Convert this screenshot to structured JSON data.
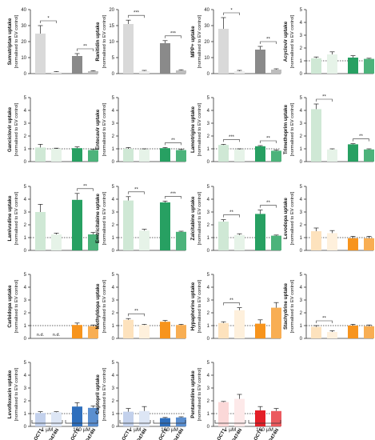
{
  "figure": {
    "conc_low": "1 µM",
    "conc_high": "100 µM",
    "cat_labels": [
      "OCT1",
      "OCT1 D474N"
    ],
    "ylabel_line2": "[normalised to EV control]"
  },
  "colors": {
    "grey": [
      "#d9d9d9",
      "#ededed",
      "#8a8a8a",
      "#bdbdbd"
    ],
    "green": [
      "#cfe8d5",
      "#e6f3e8",
      "#27a062",
      "#4cb37b"
    ],
    "orange": [
      "#fde2bd",
      "#fef0dc",
      "#f7941d",
      "#f8ae53"
    ],
    "blue": [
      "#c3d1ec",
      "#dde6f5",
      "#2f6fbd",
      "#5b8fd0"
    ],
    "red": [
      "#fbd8d8",
      "#fde9e9",
      "#e32028",
      "#eb5a5f"
    ]
  },
  "chart_data": [
    {
      "type": "bar",
      "title": "Sumatriptan uptake",
      "ylabel": "[normalised to EV control]",
      "ylim": [
        0,
        40
      ],
      "ticks": [
        0,
        10,
        20,
        30,
        40
      ],
      "palette": "grey",
      "categories": [
        "OCT1 1 µM",
        "OCT1 D474N 1 µM",
        "OCT1 100 µM",
        "OCT1 D474N 100 µM"
      ],
      "values": [
        25,
        1,
        11,
        1.5
      ],
      "errors": [
        5,
        0.3,
        1.5,
        0.3
      ],
      "significance": [
        {
          "pair": "low",
          "label": "*"
        },
        {
          "pair": "high",
          "label": "**"
        }
      ],
      "dotted": null
    },
    {
      "type": "bar",
      "title": "Ranitidin uptake",
      "ylabel": "[normalised to EV control]",
      "ylim": [
        0,
        20
      ],
      "ticks": [
        0,
        5,
        10,
        15,
        20
      ],
      "palette": "grey",
      "categories": [
        "OCT1 1 µM",
        "OCT1 D474N 1 µM",
        "OCT1 100 µM",
        "OCT1 D474N 100 µM"
      ],
      "values": [
        15.5,
        0.8,
        9.5,
        1
      ],
      "errors": [
        1.2,
        0.2,
        0.8,
        0.2
      ],
      "significance": [
        {
          "pair": "low",
          "label": "***"
        },
        {
          "pair": "high",
          "label": "***"
        }
      ],
      "dotted": null
    },
    {
      "type": "bar",
      "title": "MPP+ uptake",
      "ylabel": "[normalised to EV control]",
      "ylim": [
        0,
        40
      ],
      "ticks": [
        0,
        10,
        20,
        30,
        40
      ],
      "palette": "grey",
      "categories": [
        "OCT1 1 µM",
        "OCT1 D474N 1 µM",
        "OCT1 100 µM",
        "OCT1 D474N 100 µM"
      ],
      "values": [
        28,
        1.5,
        15,
        2.5
      ],
      "errors": [
        7,
        0.5,
        2,
        0.5
      ],
      "significance": [
        {
          "pair": "low",
          "label": "*"
        },
        {
          "pair": "high",
          "label": "**"
        }
      ],
      "dotted": null
    },
    {
      "type": "bar",
      "title": "Acyclovir uptake",
      "ylabel": "[normalised to EV control]",
      "ylim": [
        0,
        5
      ],
      "ticks": [
        0,
        1,
        2,
        3,
        4,
        5
      ],
      "palette": "green",
      "categories": [
        "OCT1 1 µM",
        "OCT1 D474N 1 µM",
        "OCT1 100 µM",
        "OCT1 D474N 100 µM"
      ],
      "values": [
        1.2,
        1.5,
        1.25,
        1.15
      ],
      "errors": [
        0.1,
        0.2,
        0.15,
        0.05
      ],
      "significance": [],
      "dotted": 1
    },
    {
      "type": "bar",
      "title": "Ganciclovir uptake",
      "ylabel": "[normalised to EV control]",
      "ylim": [
        0,
        5
      ],
      "ticks": [
        0,
        1,
        2,
        3,
        4,
        5
      ],
      "palette": "green",
      "categories": [
        "OCT1 1 µM",
        "OCT1 D474N 1 µM",
        "OCT1 100 µM",
        "OCT1 D474N 100 µM"
      ],
      "values": [
        1.1,
        1,
        1.05,
        0.9
      ],
      "errors": [
        0.25,
        0.05,
        0.1,
        0.05
      ],
      "significance": [],
      "dotted": 1
    },
    {
      "type": "bar",
      "title": "Entecavir uptake",
      "ylabel": "[normalised to EV control]",
      "ylim": [
        0,
        5
      ],
      "ticks": [
        0,
        1,
        2,
        3,
        4,
        5
      ],
      "palette": "green",
      "categories": [
        "OCT1 1 µM",
        "OCT1 D474N 1 µM",
        "OCT1 100 µM",
        "OCT1 D474N 100 µM"
      ],
      "values": [
        1,
        0.95,
        1.05,
        0.9
      ],
      "errors": [
        0.1,
        0.05,
        0.05,
        0.05
      ],
      "significance": [
        {
          "pair": "high",
          "label": "**"
        }
      ],
      "dotted": 1
    },
    {
      "type": "bar",
      "title": "Lamotrigine uptake",
      "ylabel": "[normalised to EV control]",
      "ylim": [
        0,
        5
      ],
      "ticks": [
        0,
        1,
        2,
        3,
        4,
        5
      ],
      "palette": "green",
      "categories": [
        "OCT1 1 µM",
        "OCT1 D474N 1 µM",
        "OCT1 100 µM",
        "OCT1 D474N 100 µM"
      ],
      "values": [
        1.3,
        0.95,
        1.2,
        0.85
      ],
      "errors": [
        0.05,
        0.05,
        0.05,
        0.05
      ],
      "significance": [
        {
          "pair": "low",
          "label": "***"
        },
        {
          "pair": "high",
          "label": "**"
        }
      ],
      "dotted": 1
    },
    {
      "type": "bar",
      "title": "Trimethoprim uptake",
      "ylabel": "[normalised to EV control]",
      "ylim": [
        0,
        5
      ],
      "ticks": [
        0,
        1,
        2,
        3,
        4,
        5
      ],
      "palette": "green",
      "categories": [
        "OCT1 1 µM",
        "OCT1 D474N 1 µM",
        "OCT1 100 µM",
        "OCT1 D474N 100 µM"
      ],
      "values": [
        4.1,
        0.95,
        1.35,
        0.95
      ],
      "errors": [
        0.4,
        0.05,
        0.05,
        0.05
      ],
      "significance": [
        {
          "pair": "low",
          "label": "**"
        },
        {
          "pair": "high",
          "label": "**"
        }
      ],
      "dotted": null
    },
    {
      "type": "bar",
      "title": "Lamivudine uptake",
      "ylabel": "[normalised to EV control]",
      "ylim": [
        0,
        5
      ],
      "ticks": [
        0,
        1,
        2,
        3,
        4,
        5
      ],
      "palette": "green",
      "categories": [
        "OCT1 1 µM",
        "OCT1 D474N 1 µM",
        "OCT1 100 µM",
        "OCT1 D474N 100 µM"
      ],
      "values": [
        3,
        1.25,
        3.95,
        1.25
      ],
      "errors": [
        0.6,
        0.1,
        0.5,
        0.15
      ],
      "significance": [
        {
          "pair": "high",
          "label": "**"
        }
      ],
      "dotted": 1
    },
    {
      "type": "bar",
      "title": "Emtricitabine uptake",
      "ylabel": "[normalised to EV control]",
      "ylim": [
        0,
        5
      ],
      "ticks": [
        0,
        1,
        2,
        3,
        4,
        5
      ],
      "palette": "green",
      "categories": [
        "OCT1 1 µM",
        "OCT1 D474N 1 µM",
        "OCT1 100 µM",
        "OCT1 D474N 100 µM"
      ],
      "values": [
        3.9,
        1.55,
        3.75,
        1.45
      ],
      "errors": [
        0.3,
        0.1,
        0.1,
        0.05
      ],
      "significance": [
        {
          "pair": "low",
          "label": "**"
        },
        {
          "pair": "high",
          "label": "***"
        }
      ],
      "dotted": 1
    },
    {
      "type": "bar",
      "title": "Zalcitabine uptake",
      "ylabel": "[normalised to EV control]",
      "ylim": [
        0,
        5
      ],
      "ticks": [
        0,
        1,
        2,
        3,
        4,
        5
      ],
      "palette": "green",
      "categories": [
        "OCT1 1 µM",
        "OCT1 D474N 1 µM",
        "OCT1 100 µM",
        "OCT1 D474N 100 µM"
      ],
      "values": [
        2.25,
        1.2,
        2.85,
        1.15
      ],
      "errors": [
        0.15,
        0.1,
        0.3,
        0.05
      ],
      "significance": [
        {
          "pair": "low",
          "label": "**"
        },
        {
          "pair": "high",
          "label": "**"
        }
      ],
      "dotted": 1
    },
    {
      "type": "bar",
      "title": "Levodopa uptake",
      "ylabel": "[normalised to EV control]",
      "ylim": [
        0,
        5
      ],
      "ticks": [
        0,
        1,
        2,
        3,
        4,
        5
      ],
      "palette": "orange",
      "categories": [
        "OCT1 1 µM",
        "OCT1 D474N 1 µM",
        "OCT1 100 µM",
        "OCT1 D474N 100 µM"
      ],
      "values": [
        1.5,
        1.35,
        0.95,
        0.95
      ],
      "errors": [
        0.25,
        0.2,
        0.15,
        0.15
      ],
      "significance": [],
      "dotted": 1
    },
    {
      "type": "bar",
      "title": "Carbidopa uptake",
      "ylabel": "[normalised to EV control]",
      "ylim": [
        0,
        5
      ],
      "ticks": [
        0,
        1,
        2,
        3,
        4,
        5
      ],
      "palette": "orange",
      "categories": [
        "OCT1 1 µM",
        "OCT1 D474N 1 µM",
        "OCT1 100 µM",
        "OCT1 D474N 100 µM"
      ],
      "values": [
        null,
        null,
        1.05,
        0.95
      ],
      "errors": [
        0,
        0,
        0.15,
        0.1
      ],
      "na_label": "n.d.",
      "significance": [],
      "dotted": 1
    },
    {
      "type": "bar",
      "title": "Methyldopa uptake",
      "ylabel": "[normalised to EV control]",
      "ylim": [
        0,
        5
      ],
      "ticks": [
        0,
        1,
        2,
        3,
        4,
        5
      ],
      "palette": "orange",
      "categories": [
        "OCT1 1 µM",
        "OCT1 D474N 1 µM",
        "OCT1 100 µM",
        "OCT1 D474N 100 µM"
      ],
      "values": [
        1.45,
        1.05,
        1.3,
        1.05
      ],
      "errors": [
        0.1,
        0.05,
        0.1,
        0.05
      ],
      "significance": [
        {
          "pair": "low",
          "label": "**"
        }
      ],
      "dotted": 1
    },
    {
      "type": "bar",
      "title": "Hypaphorine uptake",
      "ylabel": "[normalised to EV control]",
      "ylim": [
        0,
        5
      ],
      "ticks": [
        0,
        1,
        2,
        3,
        4,
        5
      ],
      "palette": "orange",
      "categories": [
        "OCT1 1 µM",
        "OCT1 D474N 1 µM",
        "OCT1 100 µM",
        "OCT1 D474N 100 µM"
      ],
      "values": [
        1.2,
        2.2,
        1.15,
        2.4
      ],
      "errors": [
        0.1,
        0.2,
        0.3,
        0.4
      ],
      "significance": [
        {
          "pair": "low",
          "label": "**"
        }
      ],
      "dotted": 1
    },
    {
      "type": "bar",
      "title": "Stachydrine uptake",
      "ylabel": "[normalised to EV control]",
      "ylim": [
        0,
        5
      ],
      "ticks": [
        0,
        1,
        2,
        3,
        4,
        5
      ],
      "palette": "orange",
      "categories": [
        "OCT1 1 µM",
        "OCT1 D474N 1 µM",
        "OCT1 100 µM",
        "OCT1 D474N 100 µM"
      ],
      "values": [
        0.9,
        0.5,
        1,
        0.95
      ],
      "errors": [
        0.1,
        0.1,
        0.1,
        0.1
      ],
      "significance": [
        {
          "pair": "low",
          "label": "**"
        }
      ],
      "dotted": 1
    },
    {
      "type": "bar",
      "title": "Levofloxacin uptake",
      "ylabel": "[normalised to EV control]",
      "ylim": [
        0,
        5
      ],
      "ticks": [
        0,
        1,
        2,
        3,
        4,
        5
      ],
      "palette": "blue",
      "categories": [
        "OCT1 1 µM",
        "OCT1 D474N 1 µM",
        "OCT1 100 µM",
        "OCT1 D474N 100 µM"
      ],
      "values": [
        1.05,
        1.1,
        1.55,
        1.45
      ],
      "errors": [
        0.1,
        0.05,
        0.3,
        0.15
      ],
      "significance": [],
      "dotted": 1
    },
    {
      "type": "bar",
      "title": "Captopril uptake",
      "ylabel": "[normalised to EV control]",
      "ylim": [
        0,
        5
      ],
      "ticks": [
        0,
        1,
        2,
        3,
        4,
        5
      ],
      "palette": "blue",
      "categories": [
        "OCT1 1 µM",
        "OCT1 D474N 1 µM",
        "OCT1 100 µM",
        "OCT1 D474N 100 µM"
      ],
      "values": [
        1.15,
        1.2,
        0.65,
        0.7
      ],
      "errors": [
        0.25,
        0.35,
        0.05,
        0.05
      ],
      "significance": [],
      "dotted": 1
    },
    {
      "type": "bar",
      "title": "Pentamidine uptake",
      "ylabel": "[normalised to EV control]",
      "ylim": [
        0,
        5
      ],
      "ticks": [
        0,
        1,
        2,
        3,
        4,
        5
      ],
      "palette": "red",
      "categories": [
        "OCT1 1 µM",
        "OCT1 D474N 1 µM",
        "OCT1 100 µM",
        "OCT1 D474N 100 µM"
      ],
      "values": [
        1.9,
        2.15,
        1.25,
        1.2
      ],
      "errors": [
        0.05,
        0.35,
        0.3,
        0.2
      ],
      "significance": [],
      "dotted": 1
    }
  ]
}
